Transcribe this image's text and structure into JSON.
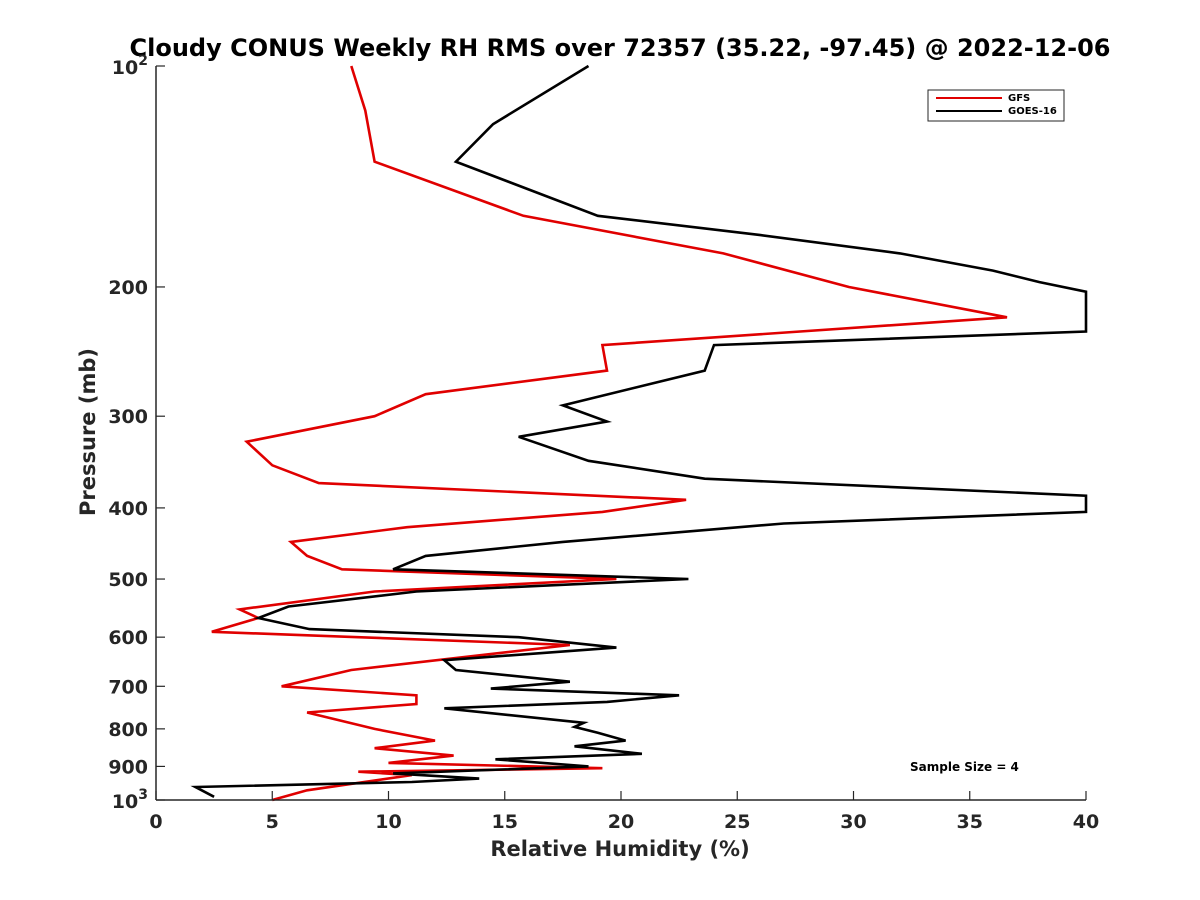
{
  "chart_data": {
    "type": "line",
    "title": "Cloudy CONUS Weekly RH RMS over 72357 (35.22, -97.45) @ 2022-12-06",
    "xlabel": "Relative Humidity (%)",
    "ylabel": "Pressure (mb)",
    "xlim": [
      0,
      40
    ],
    "ylim": [
      100,
      1000
    ],
    "y_scale": "log",
    "y_reversed": true,
    "grid": false,
    "legend_position": "top-right",
    "x_ticks": [
      "0",
      "5",
      "10",
      "15",
      "20",
      "25",
      "30",
      "35",
      "40"
    ],
    "y_ticks": [
      {
        "value": 100,
        "base": "10",
        "exp": "2"
      },
      {
        "value": 200,
        "label": "200"
      },
      {
        "value": 300,
        "label": "300"
      },
      {
        "value": 400,
        "label": "400"
      },
      {
        "value": 500,
        "label": "500"
      },
      {
        "value": 600,
        "label": "600"
      },
      {
        "value": 700,
        "label": "700"
      },
      {
        "value": 800,
        "label": "800"
      },
      {
        "value": 900,
        "label": "900"
      },
      {
        "value": 1000,
        "base": "10",
        "exp": "3"
      }
    ],
    "annotation": "Sample Size = 4",
    "series": [
      {
        "name": "GFS",
        "color": "#e00000",
        "points": [
          [
            8.4,
            100
          ],
          [
            9.0,
            115
          ],
          [
            9.4,
            135
          ],
          [
            15.8,
            160
          ],
          [
            24.4,
            180
          ],
          [
            29.8,
            200
          ],
          [
            36.6,
            220
          ],
          [
            19.2,
            240
          ],
          [
            19.4,
            260
          ],
          [
            11.6,
            280
          ],
          [
            9.4,
            300
          ],
          [
            3.9,
            325
          ],
          [
            5.0,
            350
          ],
          [
            7.0,
            370
          ],
          [
            22.8,
            390
          ],
          [
            19.2,
            405
          ],
          [
            10.8,
            425
          ],
          [
            5.8,
            445
          ],
          [
            6.5,
            465
          ],
          [
            8.0,
            485
          ],
          [
            19.8,
            500
          ],
          [
            9.4,
            520
          ],
          [
            3.6,
            550
          ],
          [
            4.4,
            565
          ],
          [
            2.4,
            590
          ],
          [
            17.8,
            615
          ],
          [
            8.4,
            665
          ],
          [
            5.4,
            700
          ],
          [
            11.2,
            720
          ],
          [
            11.2,
            740
          ],
          [
            6.5,
            760
          ],
          [
            9.4,
            800
          ],
          [
            12.0,
            830
          ],
          [
            9.4,
            850
          ],
          [
            12.8,
            870
          ],
          [
            10.0,
            890
          ],
          [
            19.2,
            905
          ],
          [
            8.7,
            915
          ],
          [
            11.0,
            925
          ],
          [
            6.5,
            970
          ],
          [
            5.0,
            1000
          ]
        ]
      },
      {
        "name": "GOES-16",
        "color": "#000000",
        "points": [
          [
            18.6,
            100
          ],
          [
            14.5,
            120
          ],
          [
            12.9,
            135
          ],
          [
            19.0,
            160
          ],
          [
            26.0,
            170
          ],
          [
            32.0,
            180
          ],
          [
            36.0,
            190
          ],
          [
            38.0,
            197
          ],
          [
            40.0,
            203
          ],
          [
            40.0,
            230
          ],
          [
            24.0,
            240
          ],
          [
            23.6,
            260
          ],
          [
            17.5,
            290
          ],
          [
            19.4,
            305
          ],
          [
            15.6,
            320
          ],
          [
            18.6,
            345
          ],
          [
            23.6,
            365
          ],
          [
            40.0,
            385
          ],
          [
            40.0,
            405
          ],
          [
            27.0,
            420
          ],
          [
            17.5,
            445
          ],
          [
            11.6,
            465
          ],
          [
            10.2,
            485
          ],
          [
            22.9,
            500
          ],
          [
            11.2,
            520
          ],
          [
            5.7,
            545
          ],
          [
            4.4,
            565
          ],
          [
            6.6,
            585
          ],
          [
            15.6,
            600
          ],
          [
            19.8,
            620
          ],
          [
            12.4,
            645
          ],
          [
            12.9,
            665
          ],
          [
            17.8,
            690
          ],
          [
            14.4,
            705
          ],
          [
            22.5,
            720
          ],
          [
            19.4,
            735
          ],
          [
            12.4,
            750
          ],
          [
            18.4,
            785
          ],
          [
            18.0,
            795
          ],
          [
            19.0,
            810
          ],
          [
            20.2,
            830
          ],
          [
            18.0,
            845
          ],
          [
            20.9,
            865
          ],
          [
            14.6,
            880
          ],
          [
            18.6,
            900
          ],
          [
            10.2,
            920
          ],
          [
            13.9,
            935
          ],
          [
            11.0,
            945
          ],
          [
            1.7,
            960
          ],
          [
            2.5,
            990
          ]
        ]
      }
    ]
  }
}
